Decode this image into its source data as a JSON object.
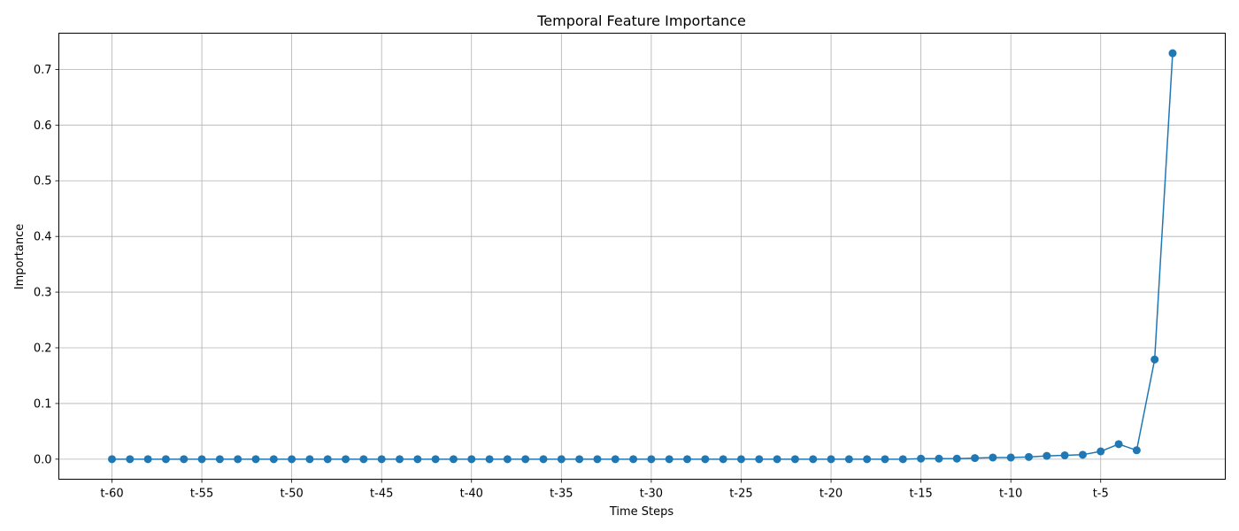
{
  "chart_data": {
    "type": "line",
    "title": "Temporal Feature Importance",
    "xlabel": "Time Steps",
    "ylabel": "Importance",
    "grid": true,
    "color": "#1f77b4",
    "marker": "circle",
    "x": [
      "t-60",
      "t-59",
      "t-58",
      "t-57",
      "t-56",
      "t-55",
      "t-54",
      "t-53",
      "t-52",
      "t-51",
      "t-50",
      "t-49",
      "t-48",
      "t-47",
      "t-46",
      "t-45",
      "t-44",
      "t-43",
      "t-42",
      "t-41",
      "t-40",
      "t-39",
      "t-38",
      "t-37",
      "t-36",
      "t-35",
      "t-34",
      "t-33",
      "t-32",
      "t-31",
      "t-30",
      "t-29",
      "t-28",
      "t-27",
      "t-26",
      "t-25",
      "t-24",
      "t-23",
      "t-22",
      "t-21",
      "t-20",
      "t-19",
      "t-18",
      "t-17",
      "t-16",
      "t-15",
      "t-14",
      "t-13",
      "t-12",
      "t-11",
      "t-10",
      "t-9",
      "t-8",
      "t-7",
      "t-6",
      "t-5",
      "t-4",
      "t-3",
      "t-2",
      "t-1"
    ],
    "xticks": [
      "t-60",
      "t-55",
      "t-50",
      "t-45",
      "t-40",
      "t-35",
      "t-30",
      "t-25",
      "t-20",
      "t-15",
      "t-10",
      "t-5"
    ],
    "values": [
      0,
      0,
      0,
      0,
      0,
      0,
      0,
      0,
      0,
      0,
      0,
      0,
      0,
      0,
      0,
      0,
      0,
      0,
      0,
      0,
      0,
      0,
      0,
      0,
      0,
      0,
      0,
      0,
      0,
      0,
      0,
      0,
      0,
      0,
      0,
      0,
      0,
      0,
      0,
      0,
      0,
      0,
      0,
      0,
      0,
      0.001,
      0.001,
      0.001,
      0.002,
      0.003,
      0.003,
      0.004,
      0.006,
      0.007,
      0.008,
      0.014,
      0.027,
      0.016,
      0.179,
      0.729
    ],
    "yticks": [
      0.0,
      0.1,
      0.2,
      0.3,
      0.4,
      0.5,
      0.6,
      0.7
    ],
    "ytick_labels": [
      "0.0",
      "0.1",
      "0.2",
      "0.3",
      "0.4",
      "0.5",
      "0.6",
      "0.7"
    ],
    "ylim": [
      -0.036,
      0.765
    ]
  }
}
